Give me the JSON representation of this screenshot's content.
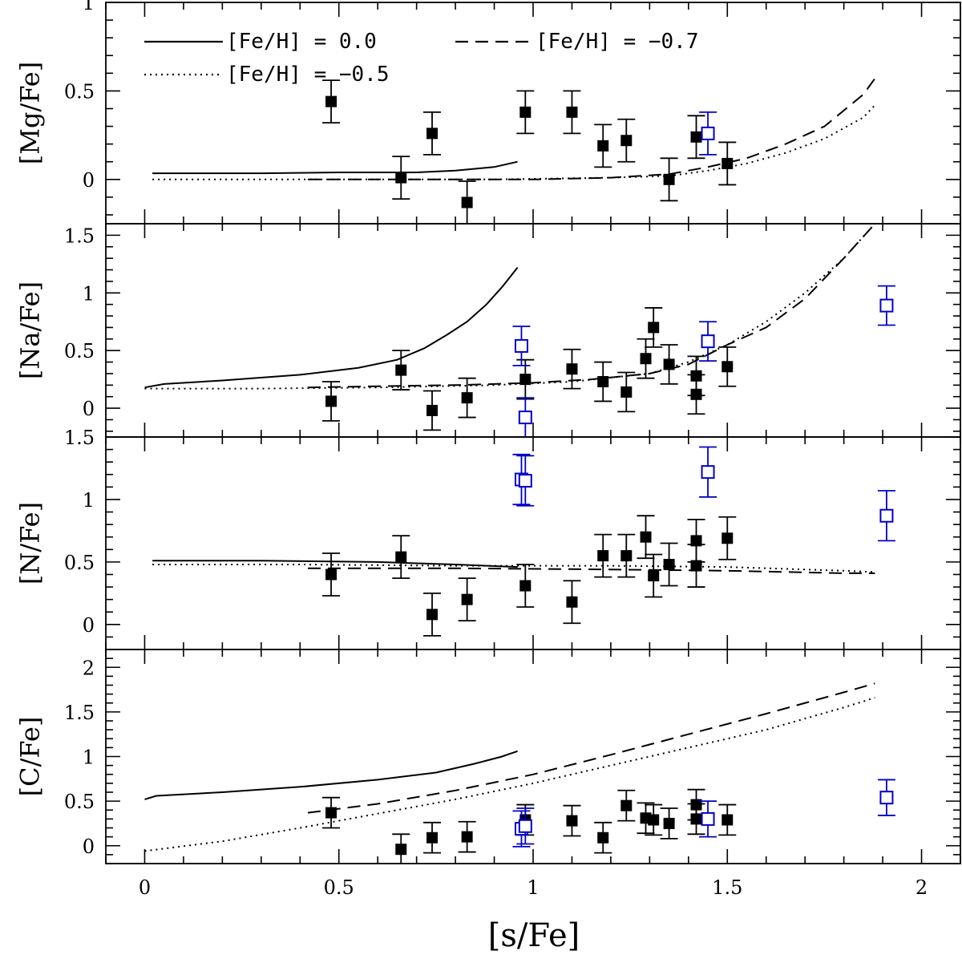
{
  "chart_data": {
    "type": "scatter",
    "xlabel": "[s/Fe]",
    "xlim": [
      -0.1,
      2.1
    ],
    "xticks": [
      0,
      0.5,
      1,
      1.5,
      2
    ],
    "xtick_labels": [
      "0",
      "0.5",
      "1",
      "1.5",
      "2"
    ],
    "legend": [
      {
        "label": "[Fe/H] = 0.0",
        "style": "solid"
      },
      {
        "label": "[Fe/H] = −0.7",
        "style": "dashed"
      },
      {
        "label": "[Fe/H] = −0.5",
        "style": "dotted"
      }
    ],
    "colors": {
      "filled": "#000000",
      "open": "#0000cc",
      "model": "#000000"
    },
    "panels": [
      {
        "ylabel": "[Mg/Fe]",
        "ylim": [
          -0.25,
          1.0
        ],
        "yticks": [
          0,
          0.5,
          1
        ],
        "ytick_labels": [
          "0",
          "0.5",
          "1"
        ],
        "models": [
          {
            "style": "solid",
            "x": [
              0.02,
              0.1,
              0.3,
              0.5,
              0.7,
              0.8,
              0.9,
              0.96
            ],
            "y": [
              0.035,
              0.035,
              0.035,
              0.04,
              0.04,
              0.05,
              0.07,
              0.1
            ]
          },
          {
            "style": "dashed",
            "x": [
              0.42,
              0.6,
              0.8,
              1.0,
              1.2,
              1.35,
              1.45,
              1.55,
              1.65,
              1.75,
              1.85,
              1.88
            ],
            "y": [
              0,
              0,
              0,
              0,
              0.01,
              0.03,
              0.07,
              0.12,
              0.2,
              0.3,
              0.48,
              0.57
            ]
          },
          {
            "style": "dotted",
            "x": [
              0.02,
              0.3,
              0.6,
              0.9,
              1.2,
              1.35,
              1.45,
              1.55,
              1.65,
              1.75,
              1.85,
              1.88
            ],
            "y": [
              0,
              0,
              0,
              0,
              0.01,
              0.02,
              0.05,
              0.09,
              0.15,
              0.23,
              0.35,
              0.42
            ]
          }
        ],
        "filled": [
          {
            "x": 0.48,
            "y": 0.44,
            "err": 0.12
          },
          {
            "x": 0.66,
            "y": 0.01,
            "err": 0.12
          },
          {
            "x": 0.74,
            "y": 0.26,
            "err": 0.12
          },
          {
            "x": 0.83,
            "y": -0.13,
            "err": 0.12
          },
          {
            "x": 0.98,
            "y": 0.38,
            "err": 0.12
          },
          {
            "x": 1.1,
            "y": 0.38,
            "err": 0.12
          },
          {
            "x": 1.18,
            "y": 0.19,
            "err": 0.12
          },
          {
            "x": 1.24,
            "y": 0.22,
            "err": 0.12
          },
          {
            "x": 1.35,
            "y": 0.0,
            "err": 0.12
          },
          {
            "x": 1.42,
            "y": 0.24,
            "err": 0.12
          },
          {
            "x": 1.5,
            "y": 0.09,
            "err": 0.12
          }
        ],
        "open": [
          {
            "x": 1.45,
            "y": 0.26,
            "err": 0.12
          }
        ]
      },
      {
        "ylabel": "[Na/Fe]",
        "ylim": [
          -0.25,
          1.6
        ],
        "yticks": [
          0,
          0.5,
          1,
          1.5
        ],
        "ytick_labels": [
          "0",
          "0.5",
          "1",
          "1.5"
        ],
        "models": [
          {
            "style": "solid",
            "x": [
              0.0,
              0.05,
              0.2,
              0.4,
              0.55,
              0.65,
              0.72,
              0.78,
              0.83,
              0.88,
              0.92,
              0.96
            ],
            "y": [
              0.18,
              0.21,
              0.24,
              0.29,
              0.35,
              0.42,
              0.52,
              0.64,
              0.75,
              0.9,
              1.05,
              1.22
            ]
          },
          {
            "style": "dashed",
            "x": [
              0.42,
              0.6,
              0.8,
              1.0,
              1.15,
              1.3,
              1.4,
              1.5,
              1.6,
              1.7,
              1.8,
              1.88
            ],
            "y": [
              0.18,
              0.19,
              0.2,
              0.22,
              0.25,
              0.3,
              0.38,
              0.55,
              0.7,
              0.95,
              1.3,
              1.6
            ]
          },
          {
            "style": "dotted",
            "x": [
              0.0,
              0.3,
              0.6,
              0.9,
              1.1,
              1.3,
              1.4,
              1.5,
              1.6,
              1.7,
              1.8,
              1.88
            ],
            "y": [
              0.17,
              0.17,
              0.18,
              0.2,
              0.23,
              0.3,
              0.4,
              0.55,
              0.75,
              1.0,
              1.3,
              1.6
            ]
          }
        ],
        "filled": [
          {
            "x": 0.48,
            "y": 0.06,
            "err": 0.17
          },
          {
            "x": 0.66,
            "y": 0.33,
            "err": 0.17
          },
          {
            "x": 0.74,
            "y": -0.02,
            "err": 0.17
          },
          {
            "x": 0.83,
            "y": 0.09,
            "err": 0.17
          },
          {
            "x": 0.98,
            "y": 0.25,
            "err": 0.17
          },
          {
            "x": 1.1,
            "y": 0.34,
            "err": 0.17
          },
          {
            "x": 1.18,
            "y": 0.23,
            "err": 0.17
          },
          {
            "x": 1.24,
            "y": 0.14,
            "err": 0.17
          },
          {
            "x": 1.29,
            "y": 0.43,
            "err": 0.17
          },
          {
            "x": 1.31,
            "y": 0.7,
            "err": 0.17
          },
          {
            "x": 1.35,
            "y": 0.38,
            "err": 0.17
          },
          {
            "x": 1.42,
            "y": 0.28,
            "err": 0.17
          },
          {
            "x": 1.42,
            "y": 0.12,
            "err": 0.17
          },
          {
            "x": 1.5,
            "y": 0.36,
            "err": 0.17
          }
        ],
        "open": [
          {
            "x": 0.97,
            "y": 0.54,
            "err": 0.17
          },
          {
            "x": 0.98,
            "y": -0.08,
            "err": 0.17
          },
          {
            "x": 1.45,
            "y": 0.58,
            "err": 0.17
          },
          {
            "x": 1.91,
            "y": 0.89,
            "err": 0.17
          }
        ]
      },
      {
        "ylabel": "[N/Fe]",
        "ylim": [
          -0.2,
          1.5
        ],
        "yticks": [
          0,
          0.5,
          1,
          1.5
        ],
        "ytick_labels": [
          "0",
          "0.5",
          "1",
          "1.5"
        ],
        "models": [
          {
            "style": "solid",
            "x": [
              0.02,
              0.3,
              0.6,
              0.8,
              0.96
            ],
            "y": [
              0.51,
              0.51,
              0.5,
              0.48,
              0.46
            ]
          },
          {
            "style": "dashed",
            "x": [
              0.42,
              0.8,
              1.2,
              1.5,
              1.8,
              1.88
            ],
            "y": [
              0.45,
              0.45,
              0.44,
              0.43,
              0.41,
              0.41
            ]
          },
          {
            "style": "dotted",
            "x": [
              0.02,
              0.4,
              0.8,
              1.2,
              1.5,
              1.8,
              1.88
            ],
            "y": [
              0.48,
              0.48,
              0.47,
              0.47,
              0.46,
              0.43,
              0.42
            ]
          }
        ],
        "filled": [
          {
            "x": 0.48,
            "y": 0.4,
            "err": 0.17
          },
          {
            "x": 0.66,
            "y": 0.54,
            "err": 0.17
          },
          {
            "x": 0.74,
            "y": 0.08,
            "err": 0.17
          },
          {
            "x": 0.83,
            "y": 0.2,
            "err": 0.17
          },
          {
            "x": 0.98,
            "y": 0.31,
            "err": 0.17
          },
          {
            "x": 1.1,
            "y": 0.18,
            "err": 0.17
          },
          {
            "x": 1.18,
            "y": 0.55,
            "err": 0.17
          },
          {
            "x": 1.24,
            "y": 0.55,
            "err": 0.17
          },
          {
            "x": 1.29,
            "y": 0.7,
            "err": 0.17
          },
          {
            "x": 1.31,
            "y": 0.39,
            "err": 0.17
          },
          {
            "x": 1.35,
            "y": 0.48,
            "err": 0.17
          },
          {
            "x": 1.42,
            "y": 0.67,
            "err": 0.17
          },
          {
            "x": 1.42,
            "y": 0.47,
            "err": 0.17
          },
          {
            "x": 1.5,
            "y": 0.69,
            "err": 0.17
          }
        ],
        "open": [
          {
            "x": 0.97,
            "y": 1.16,
            "err": 0.2
          },
          {
            "x": 0.98,
            "y": 1.15,
            "err": 0.2
          },
          {
            "x": 1.45,
            "y": 1.22,
            "err": 0.2
          },
          {
            "x": 1.91,
            "y": 0.87,
            "err": 0.2
          }
        ]
      },
      {
        "ylabel": "[C/Fe]",
        "ylim": [
          -0.2,
          2.2
        ],
        "yticks": [
          0,
          0.5,
          1,
          1.5,
          2
        ],
        "ytick_labels": [
          "0",
          "0.5",
          "1",
          "1.5",
          "2"
        ],
        "models": [
          {
            "style": "solid",
            "x": [
              0.0,
              0.03,
              0.2,
              0.4,
              0.6,
              0.75,
              0.85,
              0.92,
              0.96
            ],
            "y": [
              0.52,
              0.56,
              0.6,
              0.66,
              0.74,
              0.82,
              0.92,
              1.0,
              1.06
            ]
          },
          {
            "style": "dashed",
            "x": [
              0.42,
              0.6,
              0.8,
              1.0,
              1.2,
              1.4,
              1.6,
              1.8,
              1.88
            ],
            "y": [
              0.37,
              0.47,
              0.62,
              0.8,
              1.02,
              1.25,
              1.48,
              1.72,
              1.82
            ]
          },
          {
            "style": "dotted",
            "x": [
              0.0,
              0.2,
              0.4,
              0.6,
              0.8,
              1.0,
              1.2,
              1.4,
              1.6,
              1.8,
              1.88
            ],
            "y": [
              -0.06,
              0.05,
              0.2,
              0.36,
              0.52,
              0.7,
              0.9,
              1.1,
              1.3,
              1.55,
              1.66
            ]
          }
        ],
        "filled": [
          {
            "x": 0.48,
            "y": 0.37,
            "err": 0.17
          },
          {
            "x": 0.66,
            "y": -0.04,
            "err": 0.17
          },
          {
            "x": 0.74,
            "y": 0.09,
            "err": 0.17
          },
          {
            "x": 0.83,
            "y": 0.1,
            "err": 0.17
          },
          {
            "x": 0.98,
            "y": 0.29,
            "err": 0.17
          },
          {
            "x": 1.1,
            "y": 0.28,
            "err": 0.17
          },
          {
            "x": 1.18,
            "y": 0.09,
            "err": 0.17
          },
          {
            "x": 1.24,
            "y": 0.45,
            "err": 0.17
          },
          {
            "x": 1.29,
            "y": 0.31,
            "err": 0.17
          },
          {
            "x": 1.31,
            "y": 0.29,
            "err": 0.17
          },
          {
            "x": 1.35,
            "y": 0.25,
            "err": 0.17
          },
          {
            "x": 1.42,
            "y": 0.46,
            "err": 0.17
          },
          {
            "x": 1.42,
            "y": 0.3,
            "err": 0.17
          },
          {
            "x": 1.5,
            "y": 0.29,
            "err": 0.17
          }
        ],
        "open": [
          {
            "x": 0.97,
            "y": 0.19,
            "err": 0.2
          },
          {
            "x": 0.98,
            "y": 0.22,
            "err": 0.2
          },
          {
            "x": 1.45,
            "y": 0.3,
            "err": 0.2
          },
          {
            "x": 1.91,
            "y": 0.54,
            "err": 0.2
          }
        ]
      }
    ]
  }
}
